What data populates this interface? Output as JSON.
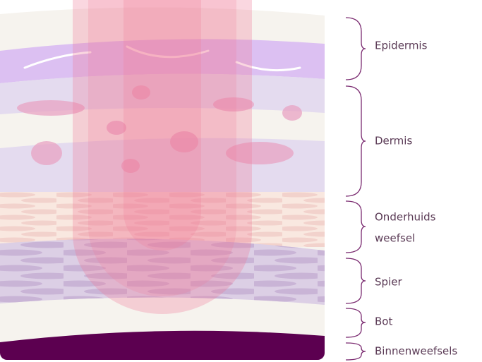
{
  "layers": [
    {
      "lines": [
        "Epidermis"
      ]
    },
    {
      "lines": [
        "Dermis"
      ]
    },
    {
      "lines": [
        "Onderhuids",
        "weefsel"
      ]
    },
    {
      "lines": [
        "Spier"
      ]
    },
    {
      "lines": [
        "Bot"
      ]
    },
    {
      "lines": [
        "Binnenweefsels"
      ]
    }
  ]
}
